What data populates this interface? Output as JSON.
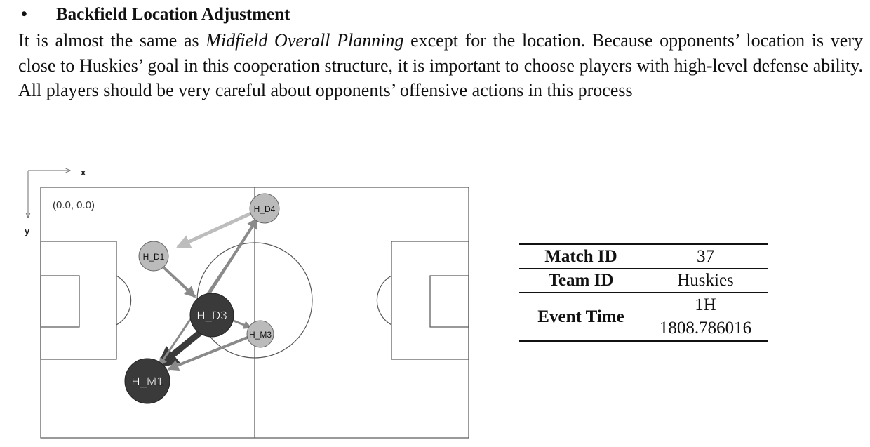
{
  "heading": {
    "bullet": "•",
    "title": "Backfield Location Adjustment"
  },
  "paragraph": {
    "before": "It is almost the same as ",
    "emphasis": "Midfield Overall Planning",
    "after": " except for the location. Because opponents’ location is very close to Huskies’ goal in this cooperation structure, it is important to choose players with high-level defense ability. All players should be very careful about opponents’ offensive actions in this process"
  },
  "field": {
    "axis_x": "x",
    "axis_y": "y",
    "origin_label": "(0.0,  0.0)",
    "players": [
      {
        "id": "H_D4",
        "role": "defender",
        "color": "#bbbbbb"
      },
      {
        "id": "H_D1",
        "role": "defender",
        "color": "#bbbbbb"
      },
      {
        "id": "H_D3",
        "role": "defender",
        "color": "#3a3a3a"
      },
      {
        "id": "H_M3",
        "role": "midfielder",
        "color": "#bbbbbb"
      },
      {
        "id": "H_M1",
        "role": "midfielder",
        "color": "#3a3a3a"
      }
    ]
  },
  "table": {
    "rows": [
      {
        "key": "Match ID",
        "value": "37"
      },
      {
        "key": "Team ID",
        "value": "Huskies"
      },
      {
        "key": "Event Time",
        "value_line1": "1H",
        "value_line2": "1808.786016"
      }
    ]
  }
}
